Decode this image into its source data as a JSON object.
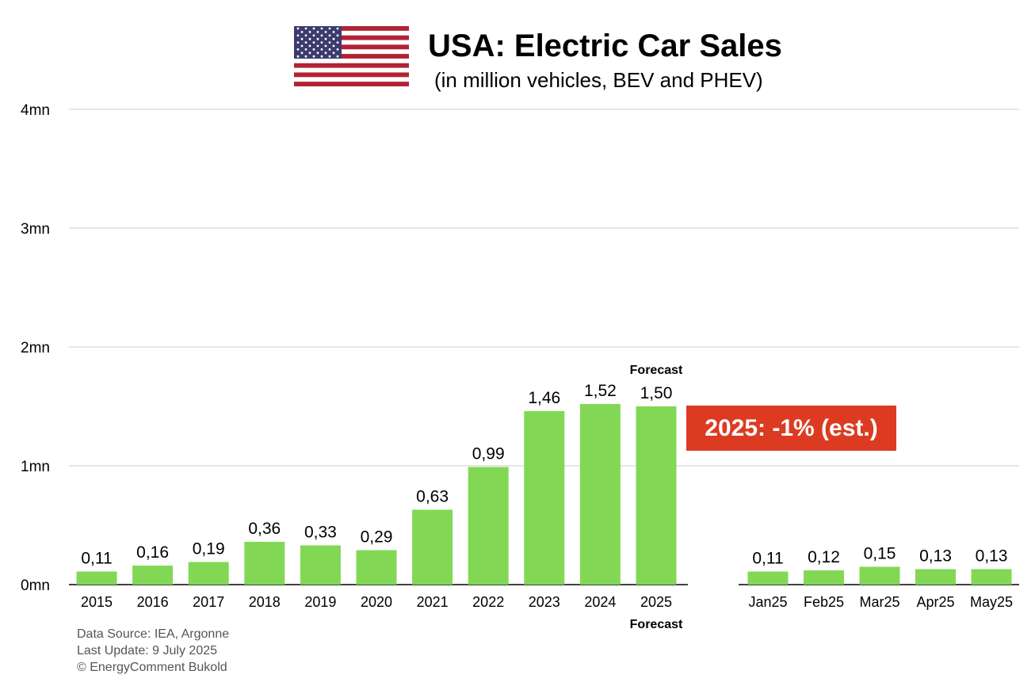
{
  "header": {
    "title": "USA: Electric Car Sales",
    "subtitle": "(in million vehicles, BEV and PHEV)"
  },
  "callout": {
    "text": "2025: -1% (est.)",
    "color": "#dc3b22"
  },
  "source": {
    "line1": "Data Source: IEA, Argonne",
    "line2": "Last Update: 9 July 2025",
    "line3": "© EnergyComment Bukold"
  },
  "colors": {
    "bar": "#82d855",
    "grid": "#cccccc",
    "axis": "#000000"
  },
  "chart_data": {
    "type": "bar",
    "title": "USA: Electric Car Sales",
    "subtitle": "(in million vehicles, BEV and PHEV)",
    "xlabel": "",
    "ylabel": "",
    "ylim": [
      0,
      4
    ],
    "yticks": [
      0,
      1,
      2,
      3,
      4
    ],
    "ytick_labels": [
      "0mn",
      "1mn",
      "2mn",
      "3mn",
      "4mn"
    ],
    "grid": true,
    "groups": [
      {
        "categories": [
          "2015",
          "2016",
          "2017",
          "2018",
          "2019",
          "2020",
          "2021",
          "2022",
          "2023",
          "2024",
          "2025"
        ],
        "values": [
          0.11,
          0.16,
          0.19,
          0.36,
          0.33,
          0.29,
          0.63,
          0.99,
          1.46,
          1.52,
          1.5
        ],
        "labels": [
          "0,11",
          "0,16",
          "0,19",
          "0,36",
          "0,33",
          "0,29",
          "0,63",
          "0,99",
          "1,46",
          "1,52",
          "1,50"
        ]
      },
      {
        "categories": [
          "Jan25",
          "Feb25",
          "Mar25",
          "Apr25",
          "May25"
        ],
        "values": [
          0.11,
          0.12,
          0.15,
          0.13,
          0.13
        ],
        "labels": [
          "0,11",
          "0,12",
          "0,15",
          "0,13",
          "0,13"
        ]
      }
    ],
    "annotations": [
      {
        "text": "Forecast",
        "category": "2025",
        "position": "above"
      },
      {
        "text": "Forecast",
        "category": "2025",
        "position": "below"
      }
    ]
  }
}
